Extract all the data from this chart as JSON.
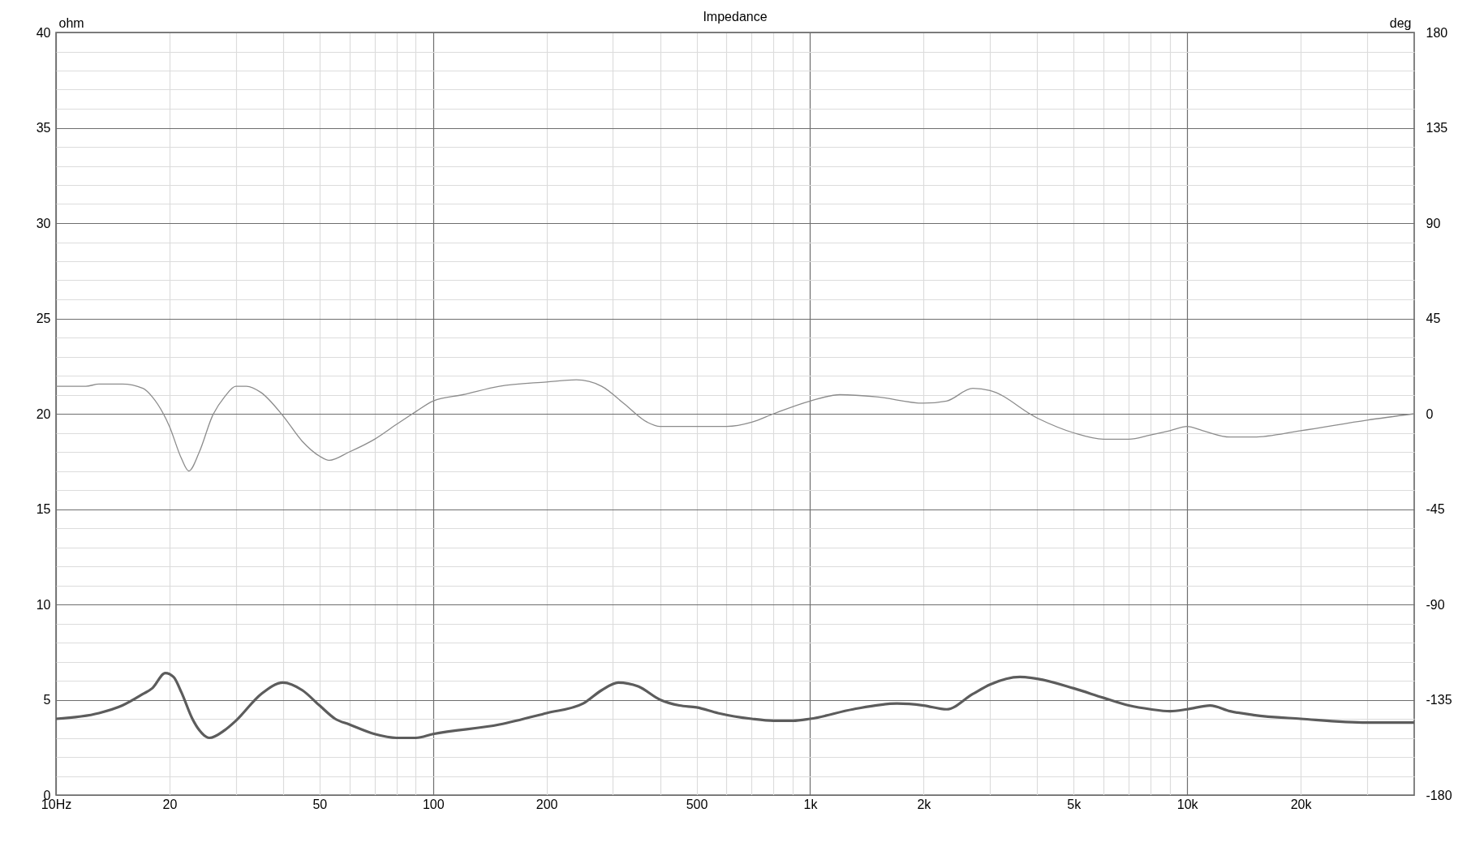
{
  "chart_data": {
    "type": "line",
    "title": "Impedance",
    "ylabel": "ohm",
    "y2label": "deg",
    "log": "x",
    "grid": true,
    "xlim": [
      10,
      40000
    ],
    "xticks": [
      {
        "value": 10,
        "label": "10Hz"
      },
      20,
      {
        "value": 30,
        "label": null
      },
      {
        "value": 40,
        "label": null
      },
      50,
      {
        "value": 60,
        "label": null
      },
      {
        "value": 70,
        "label": null
      },
      {
        "value": 80,
        "label": null
      },
      {
        "value": 90,
        "label": null
      },
      100,
      200,
      {
        "value": 300,
        "label": null
      },
      {
        "value": 400,
        "label": null
      },
      500,
      {
        "value": 600,
        "label": null
      },
      {
        "value": 700,
        "label": null
      },
      {
        "value": 800,
        "label": null
      },
      {
        "value": 900,
        "label": null
      },
      {
        "value": 1000,
        "label": "1k"
      },
      {
        "value": 2000,
        "label": "2k"
      },
      {
        "value": 3000,
        "label": null
      },
      {
        "value": 4000,
        "label": null
      },
      {
        "value": 5000,
        "label": "5k"
      },
      {
        "value": 6000,
        "label": null
      },
      {
        "value": 7000,
        "label": null
      },
      {
        "value": 8000,
        "label": null
      },
      {
        "value": 9000,
        "label": null
      },
      {
        "value": 10000,
        "label": "10k"
      },
      {
        "value": 20000,
        "label": "20k"
      },
      {
        "value": 30000,
        "label": null
      }
    ],
    "ylim": [
      0,
      40
    ],
    "yticks": [
      0,
      {
        "value": 1,
        "label": null
      },
      {
        "value": 2,
        "label": null
      },
      {
        "value": 3,
        "label": null
      },
      {
        "value": 4,
        "label": null
      },
      5,
      {
        "value": 6,
        "label": null
      },
      {
        "value": 7,
        "label": null
      },
      {
        "value": 8,
        "label": null
      },
      {
        "value": 9,
        "label": null
      },
      10,
      {
        "value": 11,
        "label": null
      },
      {
        "value": 12,
        "label": null
      },
      {
        "value": 13,
        "label": null
      },
      {
        "value": 14,
        "label": null
      },
      15,
      {
        "value": 16,
        "label": null
      },
      {
        "value": 17,
        "label": null
      },
      {
        "value": 18,
        "label": null
      },
      {
        "value": 19,
        "label": null
      },
      20,
      {
        "value": 21,
        "label": null
      },
      {
        "value": 22,
        "label": null
      },
      {
        "value": 23,
        "label": null
      },
      {
        "value": 24,
        "label": null
      },
      25,
      {
        "value": 26,
        "label": null
      },
      {
        "value": 27,
        "label": null
      },
      {
        "value": 28,
        "label": null
      },
      {
        "value": 29,
        "label": null
      },
      30,
      {
        "value": 31,
        "label": null
      },
      {
        "value": 32,
        "label": null
      },
      {
        "value": 33,
        "label": null
      },
      {
        "value": 34,
        "label": null
      },
      35,
      {
        "value": 36,
        "label": null
      },
      {
        "value": 37,
        "label": null
      },
      {
        "value": 38,
        "label": null
      },
      {
        "value": 39,
        "label": null
      },
      40
    ],
    "y2lim": [
      -180,
      180
    ],
    "y2ticks": [
      -180,
      -135,
      -90,
      -45,
      0,
      45,
      90,
      135,
      180
    ],
    "series": [
      {
        "color": "#5c5c5c",
        "x": [
          10,
          13,
          15,
          17,
          18,
          19.5,
          20.5,
          21.5,
          23,
          24,
          25.5,
          28,
          30,
          35,
          40,
          45,
          50,
          55,
          60,
          70,
          80,
          90,
          100,
          150,
          200,
          250,
          280,
          310,
          350,
          400,
          450,
          500,
          570,
          700,
          800,
          900,
          1000,
          1300,
          1700,
          2000,
          2300,
          2700,
          3000,
          3600,
          4000,
          5000,
          6000,
          7000,
          8000,
          9000,
          10000,
          11500,
          13000,
          15000,
          20000,
          30000,
          40000
        ],
        "values": [
          4.0,
          4.3,
          4.7,
          5.3,
          5.6,
          6.4,
          6.2,
          5.4,
          4.0,
          3.4,
          3.0,
          3.4,
          3.9,
          5.3,
          5.9,
          5.5,
          4.7,
          4.0,
          3.7,
          3.2,
          3.0,
          3.0,
          3.2,
          3.7,
          4.3,
          4.8,
          5.5,
          5.9,
          5.7,
          5.0,
          4.7,
          4.6,
          4.3,
          4.0,
          3.9,
          3.9,
          4.0,
          4.5,
          4.8,
          4.7,
          4.5,
          5.3,
          5.8,
          6.2,
          6.1,
          5.6,
          5.1,
          4.7,
          4.5,
          4.4,
          4.5,
          4.7,
          4.4,
          4.2,
          4.0,
          3.8,
          3.8
        ]
      },
      {
        "color": "#8c8c8c",
        "axis": "y2",
        "x": [
          10,
          12,
          13,
          15,
          17,
          18,
          20,
          21.5,
          22.5,
          24,
          26,
          28,
          30,
          32,
          35,
          40,
          45,
          50,
          53,
          60,
          70,
          80,
          90,
          100,
          120,
          150,
          200,
          240,
          280,
          320,
          370,
          400,
          500,
          600,
          700,
          800,
          1000,
          1200,
          1500,
          2000,
          2300,
          2700,
          3000,
          4000,
          5000,
          6000,
          7000,
          8000,
          9000,
          10000,
          11000,
          13000,
          15000,
          20000,
          30000,
          40000
        ],
        "values": [
          13,
          13,
          14,
          14,
          12,
          8,
          -6,
          -21,
          -27,
          -18,
          -1,
          8,
          13,
          13,
          10,
          -1,
          -13,
          -20,
          -22,
          -18,
          -12,
          -5,
          1,
          6,
          9,
          13,
          15,
          16,
          13,
          5,
          -4,
          -6,
          -6,
          -6,
          -4,
          0,
          6,
          9,
          8,
          5,
          6,
          12,
          11,
          -2,
          -9,
          -12,
          -12,
          -10,
          -8,
          -6,
          -8,
          -11,
          -11,
          -8,
          -3,
          0
        ]
      }
    ]
  }
}
